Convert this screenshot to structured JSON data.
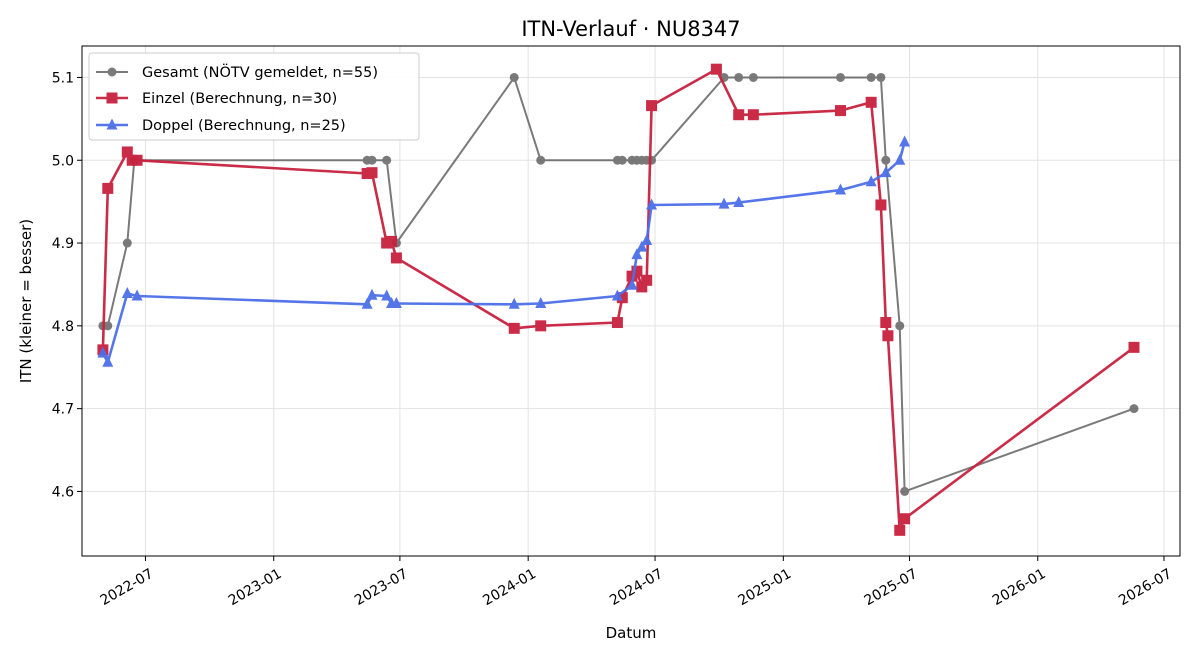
{
  "chart_data": {
    "type": "line",
    "title": "ITN-Verlauf · NU8347",
    "xlabel": "Datum",
    "ylabel": "ITN  (kleiner = besser)",
    "x_is_date": true,
    "xlim": [
      "2022-04-01",
      "2026-07-24"
    ],
    "ylim": [
      4.522,
      5.138
    ],
    "x_ticks": [
      "2022-07",
      "2023-01",
      "2023-07",
      "2024-01",
      "2024-07",
      "2025-01",
      "2025-07",
      "2026-01",
      "2026-07"
    ],
    "y_ticks": [
      4.6,
      4.7,
      4.8,
      4.9,
      5.0,
      5.1
    ],
    "grid": true,
    "legend_position": "top-left",
    "series": [
      {
        "name": "Gesamt (NÖTV gemeldet, n=55)",
        "color": "#595959",
        "marker": "circle",
        "points": [
          [
            "2022-05-01",
            4.8
          ],
          [
            "2022-05-08",
            4.8
          ],
          [
            "2022-06-05",
            4.9
          ],
          [
            "2022-06-15",
            5.0
          ],
          [
            "2023-05-15",
            5.0
          ],
          [
            "2023-05-22",
            5.0
          ],
          [
            "2023-06-12",
            5.0
          ],
          [
            "2023-06-26",
            4.9
          ],
          [
            "2023-12-12",
            5.1
          ],
          [
            "2024-01-19",
            5.0
          ],
          [
            "2024-05-08",
            5.0
          ],
          [
            "2024-05-15",
            5.0
          ],
          [
            "2024-05-29",
            5.0
          ],
          [
            "2024-06-05",
            5.0
          ],
          [
            "2024-06-12",
            5.0
          ],
          [
            "2024-06-19",
            5.0
          ],
          [
            "2024-06-26",
            5.0
          ],
          [
            "2024-10-08",
            5.1
          ],
          [
            "2024-10-29",
            5.1
          ],
          [
            "2024-11-19",
            5.1
          ],
          [
            "2025-03-24",
            5.1
          ],
          [
            "2025-05-07",
            5.1
          ],
          [
            "2025-05-21",
            5.1
          ],
          [
            "2025-05-28",
            5.0
          ],
          [
            "2025-06-17",
            4.8
          ],
          [
            "2025-06-24",
            4.6
          ],
          [
            "2026-05-19",
            4.7
          ]
        ]
      },
      {
        "name": "Einzel (Berechnung, n=30)",
        "color": "#c8213f",
        "marker": "square",
        "points": [
          [
            "2022-05-01",
            4.771
          ],
          [
            "2022-05-08",
            4.966
          ],
          [
            "2022-06-05",
            5.01
          ],
          [
            "2022-06-12",
            5.0
          ],
          [
            "2022-06-19",
            5.0
          ],
          [
            "2023-05-15",
            4.984
          ],
          [
            "2023-05-22",
            4.985
          ],
          [
            "2023-06-12",
            4.9
          ],
          [
            "2023-06-19",
            4.902
          ],
          [
            "2023-06-26",
            4.882
          ],
          [
            "2023-12-12",
            4.797
          ],
          [
            "2024-01-19",
            4.8
          ],
          [
            "2024-05-08",
            4.804
          ],
          [
            "2024-05-15",
            4.834
          ],
          [
            "2024-05-29",
            4.86
          ],
          [
            "2024-06-05",
            4.866
          ],
          [
            "2024-06-12",
            4.847
          ],
          [
            "2024-06-19",
            4.855
          ],
          [
            "2024-06-26",
            5.066
          ],
          [
            "2024-09-27",
            5.11
          ],
          [
            "2024-10-29",
            5.055
          ],
          [
            "2024-11-19",
            5.055
          ],
          [
            "2025-03-24",
            5.06
          ],
          [
            "2025-05-07",
            5.07
          ],
          [
            "2025-05-21",
            4.946
          ],
          [
            "2025-05-28",
            4.804
          ],
          [
            "2025-05-31",
            4.788
          ],
          [
            "2025-06-17",
            4.553
          ],
          [
            "2025-06-24",
            4.567
          ],
          [
            "2026-05-19",
            4.774
          ]
        ]
      },
      {
        "name": "Doppel (Berechnung, n=25)",
        "color": "#4c6fe8",
        "marker": "triangle",
        "points": [
          [
            "2022-05-01",
            4.767
          ],
          [
            "2022-05-08",
            4.756
          ],
          [
            "2022-06-05",
            4.839
          ],
          [
            "2022-06-19",
            4.836
          ],
          [
            "2023-05-15",
            4.826
          ],
          [
            "2023-05-22",
            4.837
          ],
          [
            "2023-06-12",
            4.836
          ],
          [
            "2023-06-19",
            4.827
          ],
          [
            "2023-06-26",
            4.827
          ],
          [
            "2023-12-12",
            4.826
          ],
          [
            "2024-01-19",
            4.827
          ],
          [
            "2024-05-08",
            4.836
          ],
          [
            "2024-05-29",
            4.849
          ],
          [
            "2024-06-05",
            4.886
          ],
          [
            "2024-06-12",
            4.895
          ],
          [
            "2024-06-19",
            4.903
          ],
          [
            "2024-06-26",
            4.946
          ],
          [
            "2024-10-08",
            4.947
          ],
          [
            "2024-10-29",
            4.949
          ],
          [
            "2025-03-24",
            4.964
          ],
          [
            "2025-05-07",
            4.974
          ],
          [
            "2025-05-28",
            4.985
          ],
          [
            "2025-06-17",
            5.0
          ],
          [
            "2025-06-24",
            5.022
          ]
        ]
      }
    ]
  }
}
